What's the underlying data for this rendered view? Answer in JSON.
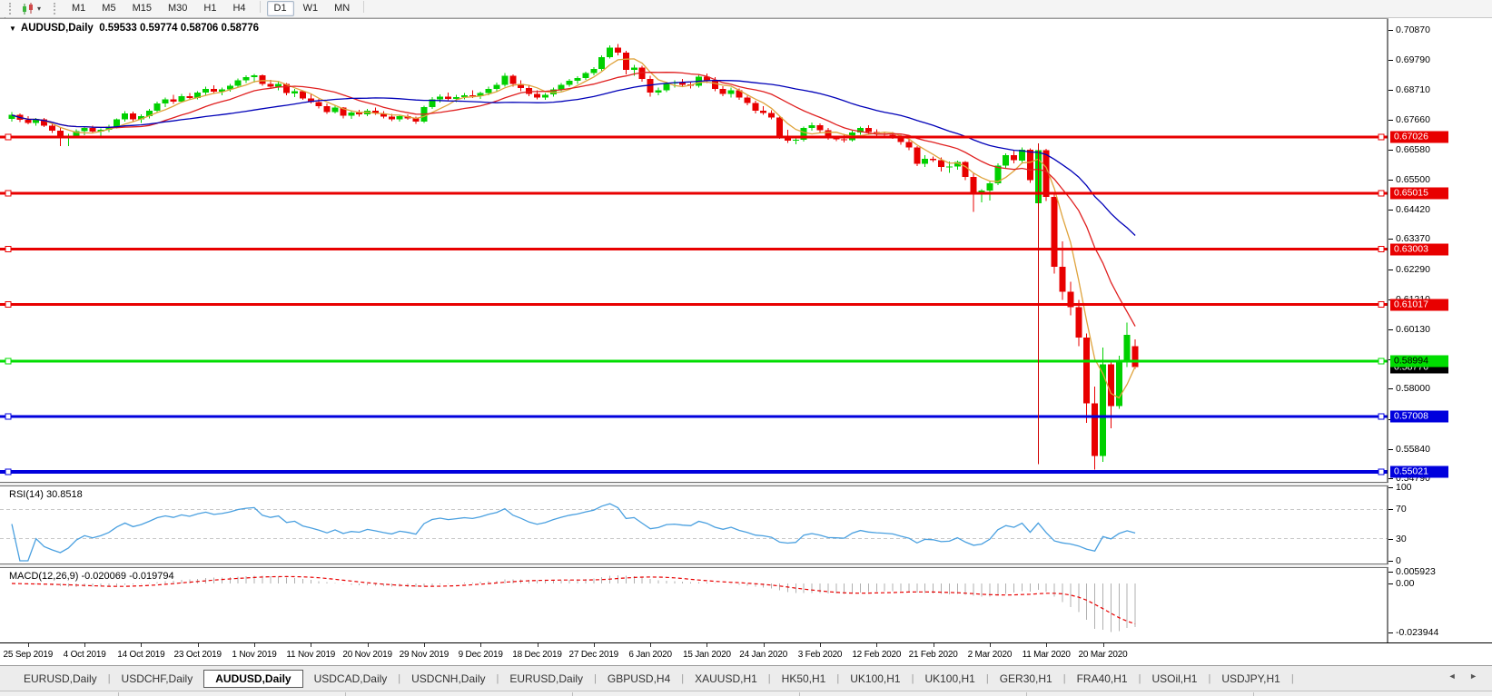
{
  "toolbar": {
    "timeframes": [
      "M1",
      "M5",
      "M15",
      "M30",
      "H1",
      "H4",
      "D1",
      "W1",
      "MN"
    ],
    "active_timeframe": "D1",
    "chart_type_icon": "candlestick-chart-icon",
    "dropdown_caret": "▾"
  },
  "chart_header": {
    "dropdown_icon": "▼",
    "symbol": "AUDUSD,Daily",
    "ohlc": "0.59533 0.59774 0.58706 0.58776"
  },
  "rsi": {
    "label": "RSI(14) 30.8518",
    "ticks": [
      "100",
      "70",
      "30",
      "0"
    ],
    "dashed_levels": [
      70,
      30
    ],
    "line_color": "#4aa0e0"
  },
  "macd": {
    "label": "MACD(12,26,9) -0.020069 -0.019794",
    "ticks": [
      "0.005923",
      "0.00",
      "-0.023944"
    ],
    "bar_color": "#b0b0b0",
    "signal_color": "#e80000"
  },
  "tabs": {
    "items": [
      {
        "label": "EURUSD,Daily",
        "active": false
      },
      {
        "label": "USDCHF,Daily",
        "active": false
      },
      {
        "label": "AUDUSD,Daily",
        "active": true
      },
      {
        "label": "USDCAD,Daily",
        "active": false
      },
      {
        "label": "USDCNH,Daily",
        "active": false
      },
      {
        "label": "EURUSD,Daily",
        "active": false
      },
      {
        "label": "GBPUSD,H4",
        "active": false
      },
      {
        "label": "XAUUSD,H1",
        "active": false
      },
      {
        "label": "HK50,H1",
        "active": false
      },
      {
        "label": "UK100,H1",
        "active": false
      },
      {
        "label": "UK100,H1",
        "active": false
      },
      {
        "label": "GER30,H1",
        "active": false
      },
      {
        "label": "FRA40,H1",
        "active": false
      },
      {
        "label": "USOil,H1",
        "active": false
      },
      {
        "label": "USDJPY,H1",
        "active": false
      }
    ],
    "nav_left": "◄",
    "nav_right": "►"
  },
  "chart_data": {
    "type": "candlestick",
    "symbol": "AUDUSD",
    "timeframe": "Daily",
    "last_bar": {
      "open": "0.59533",
      "high": "0.59774",
      "low": "0.58706",
      "close": "0.58776"
    },
    "up_color": "#00d000",
    "down_color": "#e80000",
    "price_axis_ticks": [
      "0.70870",
      "0.69790",
      "0.68710",
      "0.67660",
      "0.66580",
      "0.65500",
      "0.64420",
      "0.63370",
      "0.62290",
      "0.61210",
      "0.60130",
      "0.59050",
      "0.58000",
      "0.56920",
      "0.55840",
      "0.54790"
    ],
    "horizontal_levels": [
      {
        "label": "0.67026",
        "color": "#e80000",
        "text_color": "#ffffff",
        "thickness": 3
      },
      {
        "label": "0.65015",
        "color": "#e80000",
        "text_color": "#ffffff",
        "thickness": 3
      },
      {
        "label": "0.63003",
        "color": "#e80000",
        "text_color": "#ffffff",
        "thickness": 3
      },
      {
        "label": "0.61017",
        "color": "#e80000",
        "text_color": "#ffffff",
        "thickness": 3
      },
      {
        "label": "0.58994",
        "color": "#00dd00",
        "text_color": "#000000",
        "thickness": 3
      },
      {
        "label": "0.57008",
        "color": "#0000dd",
        "text_color": "#ffffff",
        "thickness": 3
      },
      {
        "label": "0.55021",
        "color": "#0000dd",
        "text_color": "#ffffff",
        "thickness": 4
      }
    ],
    "current_price_badge": {
      "label": "0.58776",
      "bg": "#000000",
      "text_color": "#ffffff"
    },
    "vertical_line": {
      "index": 127,
      "color": "#d00000",
      "from_price": 0.668,
      "to_price": 0.553
    },
    "moving_averages": [
      {
        "period": 5,
        "color": "#dfa33c"
      },
      {
        "period": 13,
        "color": "#e02020"
      },
      {
        "period": 30,
        "color": "#0000b8"
      }
    ],
    "x_labels": [
      "25 Sep 2019",
      "4 Oct 2019",
      "14 Oct 2019",
      "23 Oct 2019",
      "1 Nov 2019",
      "11 Nov 2019",
      "20 Nov 2019",
      "29 Nov 2019",
      "9 Dec 2019",
      "18 Dec 2019",
      "27 Dec 2019",
      "6 Jan 2020",
      "15 Jan 2020",
      "24 Jan 2020",
      "3 Feb 2020",
      "12 Fe​b 2020",
      "21 Feb 2020",
      "2 Mar 2020",
      "11 Mar 2020",
      "20 Mar 2020"
    ],
    "candles": [
      [
        0.6768,
        0.6792,
        0.6758,
        0.6782
      ],
      [
        0.6782,
        0.6788,
        0.6756,
        0.6764
      ],
      [
        0.6764,
        0.6778,
        0.6748,
        0.6754
      ],
      [
        0.6754,
        0.6772,
        0.6744,
        0.6766
      ],
      [
        0.6766,
        0.6771,
        0.6738,
        0.6744
      ],
      [
        0.6744,
        0.6752,
        0.6718,
        0.6725
      ],
      [
        0.6725,
        0.6738,
        0.667,
        0.6698
      ],
      [
        0.6698,
        0.6714,
        0.6671,
        0.6706
      ],
      [
        0.6706,
        0.673,
        0.6698,
        0.6724
      ],
      [
        0.6724,
        0.6741,
        0.671,
        0.6736
      ],
      [
        0.6736,
        0.6744,
        0.6716,
        0.6722
      ],
      [
        0.6722,
        0.6734,
        0.6705,
        0.6729
      ],
      [
        0.6729,
        0.6747,
        0.672,
        0.6741
      ],
      [
        0.6741,
        0.677,
        0.6734,
        0.6766
      ],
      [
        0.6766,
        0.6796,
        0.6758,
        0.6788
      ],
      [
        0.6788,
        0.6794,
        0.676,
        0.6766
      ],
      [
        0.6766,
        0.6784,
        0.6754,
        0.6778
      ],
      [
        0.6778,
        0.6804,
        0.677,
        0.6798
      ],
      [
        0.6798,
        0.683,
        0.6792,
        0.6824
      ],
      [
        0.6824,
        0.6844,
        0.681,
        0.6838
      ],
      [
        0.6838,
        0.6854,
        0.6822,
        0.683
      ],
      [
        0.683,
        0.6858,
        0.6826,
        0.685
      ],
      [
        0.685,
        0.6861,
        0.6836,
        0.6843
      ],
      [
        0.6843,
        0.6868,
        0.6838,
        0.6862
      ],
      [
        0.6862,
        0.6883,
        0.6855,
        0.6876
      ],
      [
        0.6876,
        0.6888,
        0.6858,
        0.6866
      ],
      [
        0.6866,
        0.688,
        0.6853,
        0.6873
      ],
      [
        0.6873,
        0.6893,
        0.6866,
        0.6886
      ],
      [
        0.6886,
        0.6913,
        0.688,
        0.6906
      ],
      [
        0.6906,
        0.6925,
        0.6896,
        0.6918
      ],
      [
        0.6918,
        0.6929,
        0.6898,
        0.6924
      ],
      [
        0.6924,
        0.6928,
        0.6886,
        0.6893
      ],
      [
        0.6893,
        0.6908,
        0.6876,
        0.6883
      ],
      [
        0.6883,
        0.69,
        0.687,
        0.6893
      ],
      [
        0.6893,
        0.6896,
        0.6853,
        0.686
      ],
      [
        0.686,
        0.6876,
        0.6846,
        0.6868
      ],
      [
        0.6868,
        0.687,
        0.6836,
        0.6841
      ],
      [
        0.6841,
        0.6856,
        0.6823,
        0.6828
      ],
      [
        0.6828,
        0.684,
        0.6806,
        0.6813
      ],
      [
        0.6813,
        0.6823,
        0.6786,
        0.6793
      ],
      [
        0.6793,
        0.6816,
        0.6788,
        0.6808
      ],
      [
        0.6808,
        0.681,
        0.677,
        0.678
      ],
      [
        0.678,
        0.6796,
        0.6768,
        0.679
      ],
      [
        0.679,
        0.68,
        0.6776,
        0.6784
      ],
      [
        0.6784,
        0.6804,
        0.6778,
        0.6798
      ],
      [
        0.6798,
        0.6808,
        0.6783,
        0.6788
      ],
      [
        0.6788,
        0.6796,
        0.677,
        0.6776
      ],
      [
        0.6776,
        0.6786,
        0.676,
        0.6766
      ],
      [
        0.6766,
        0.6782,
        0.6758,
        0.6778
      ],
      [
        0.6778,
        0.6784,
        0.6764,
        0.677
      ],
      [
        0.677,
        0.6776,
        0.675,
        0.6758
      ],
      [
        0.6758,
        0.6816,
        0.6754,
        0.681
      ],
      [
        0.681,
        0.6846,
        0.6803,
        0.6838
      ],
      [
        0.6838,
        0.6856,
        0.6826,
        0.6848
      ],
      [
        0.6848,
        0.6863,
        0.6834,
        0.684
      ],
      [
        0.684,
        0.6854,
        0.6828,
        0.6846
      ],
      [
        0.6846,
        0.686,
        0.6838,
        0.6853
      ],
      [
        0.6853,
        0.687,
        0.6843,
        0.6849
      ],
      [
        0.6849,
        0.6866,
        0.684,
        0.686
      ],
      [
        0.686,
        0.6883,
        0.6852,
        0.6876
      ],
      [
        0.6876,
        0.6898,
        0.6868,
        0.689
      ],
      [
        0.689,
        0.6932,
        0.6884,
        0.6922
      ],
      [
        0.6922,
        0.6928,
        0.6884,
        0.6894
      ],
      [
        0.6894,
        0.6906,
        0.6868,
        0.6878
      ],
      [
        0.6878,
        0.689,
        0.685,
        0.6858
      ],
      [
        0.6858,
        0.687,
        0.6838,
        0.6845
      ],
      [
        0.6845,
        0.6861,
        0.6837,
        0.6855
      ],
      [
        0.6855,
        0.688,
        0.6848,
        0.6874
      ],
      [
        0.6874,
        0.6896,
        0.6868,
        0.689
      ],
      [
        0.689,
        0.6911,
        0.6884,
        0.6905
      ],
      [
        0.6905,
        0.6921,
        0.6894,
        0.6915
      ],
      [
        0.6915,
        0.6938,
        0.6908,
        0.6932
      ],
      [
        0.6932,
        0.6953,
        0.6925,
        0.6947
      ],
      [
        0.6947,
        0.6996,
        0.694,
        0.699
      ],
      [
        0.699,
        0.7032,
        0.6984,
        0.7024
      ],
      [
        0.7024,
        0.7036,
        0.6996,
        0.7006
      ],
      [
        0.7006,
        0.7012,
        0.6928,
        0.6944
      ],
      [
        0.6944,
        0.6962,
        0.6922,
        0.6952
      ],
      [
        0.6952,
        0.6958,
        0.6902,
        0.6912
      ],
      [
        0.6912,
        0.6922,
        0.6848,
        0.6862
      ],
      [
        0.6862,
        0.688,
        0.6852,
        0.6871
      ],
      [
        0.6871,
        0.6902,
        0.6864,
        0.6895
      ],
      [
        0.6895,
        0.6906,
        0.688,
        0.6899
      ],
      [
        0.6899,
        0.6912,
        0.6885,
        0.6891
      ],
      [
        0.6891,
        0.69,
        0.6877,
        0.6887
      ],
      [
        0.6887,
        0.6926,
        0.6881,
        0.6919
      ],
      [
        0.6919,
        0.6931,
        0.6897,
        0.6905
      ],
      [
        0.6905,
        0.6917,
        0.6867,
        0.6875
      ],
      [
        0.6875,
        0.6885,
        0.6849,
        0.6857
      ],
      [
        0.6857,
        0.6881,
        0.6845,
        0.6871
      ],
      [
        0.6871,
        0.6877,
        0.6837,
        0.6844
      ],
      [
        0.6844,
        0.6851,
        0.6817,
        0.6825
      ],
      [
        0.6825,
        0.6833,
        0.6787,
        0.6797
      ],
      [
        0.6797,
        0.6813,
        0.6783,
        0.6789
      ],
      [
        0.6789,
        0.6799,
        0.6767,
        0.6773
      ],
      [
        0.6773,
        0.6779,
        0.6697,
        0.6707
      ],
      [
        0.6707,
        0.6729,
        0.6681,
        0.6689
      ],
      [
        0.6689,
        0.6705,
        0.6677,
        0.6693
      ],
      [
        0.6693,
        0.6741,
        0.6687,
        0.6735
      ],
      [
        0.6735,
        0.6755,
        0.6725,
        0.6745
      ],
      [
        0.6745,
        0.6751,
        0.6719,
        0.6727
      ],
      [
        0.6727,
        0.6735,
        0.6693,
        0.6699
      ],
      [
        0.6699,
        0.6707,
        0.6689,
        0.6695
      ],
      [
        0.6695,
        0.6715,
        0.6683,
        0.6691
      ],
      [
        0.6691,
        0.6725,
        0.6687,
        0.6719
      ],
      [
        0.6719,
        0.6741,
        0.6711,
        0.6735
      ],
      [
        0.6735,
        0.6745,
        0.6713,
        0.6721
      ],
      [
        0.6721,
        0.6731,
        0.6703,
        0.6715
      ],
      [
        0.6715,
        0.6721,
        0.6707,
        0.6711
      ],
      [
        0.6711,
        0.6721,
        0.6697,
        0.6705
      ],
      [
        0.6705,
        0.6711,
        0.6675,
        0.6685
      ],
      [
        0.6685,
        0.6697,
        0.6655,
        0.6665
      ],
      [
        0.6665,
        0.6671,
        0.6599,
        0.6607
      ],
      [
        0.6607,
        0.6637,
        0.6595,
        0.6625
      ],
      [
        0.6625,
        0.6633,
        0.6613,
        0.662
      ],
      [
        0.662,
        0.6629,
        0.6579,
        0.6595
      ],
      [
        0.6595,
        0.6615,
        0.6575,
        0.6597
      ],
      [
        0.6597,
        0.6619,
        0.6585,
        0.6613
      ],
      [
        0.6613,
        0.6617,
        0.6549,
        0.6559
      ],
      [
        0.6559,
        0.6575,
        0.6434,
        0.6505
      ],
      [
        0.6505,
        0.6515,
        0.6469,
        0.6511
      ],
      [
        0.6511,
        0.6545,
        0.6475,
        0.6537
      ],
      [
        0.6537,
        0.6609,
        0.6531,
        0.6601
      ],
      [
        0.6601,
        0.6645,
        0.6591,
        0.6637
      ],
      [
        0.6637,
        0.6655,
        0.6609,
        0.6619
      ],
      [
        0.6619,
        0.6665,
        0.6607,
        0.6657
      ],
      [
        0.6657,
        0.6662,
        0.6538,
        0.6548
      ],
      [
        0.6465,
        0.6668,
        0.646,
        0.6656
      ],
      [
        0.6656,
        0.666,
        0.6473,
        0.6488
      ],
      [
        0.6488,
        0.6498,
        0.6213,
        0.6238
      ],
      [
        0.6238,
        0.6328,
        0.6118,
        0.6148
      ],
      [
        0.6148,
        0.6183,
        0.6063,
        0.6093
      ],
      [
        0.6093,
        0.6118,
        0.5953,
        0.5983
      ],
      [
        0.5983,
        0.5998,
        0.5678,
        0.5748
      ],
      [
        0.5748,
        0.5808,
        0.551,
        0.5558
      ],
      [
        0.5558,
        0.5948,
        0.5538,
        0.5888
      ],
      [
        0.5888,
        0.5898,
        0.5658,
        0.5738
      ],
      [
        0.5738,
        0.5918,
        0.5728,
        0.5903
      ],
      [
        0.5903,
        0.6038,
        0.5878,
        0.5993
      ],
      [
        0.59533,
        0.59774,
        0.58706,
        0.58776
      ]
    ]
  }
}
